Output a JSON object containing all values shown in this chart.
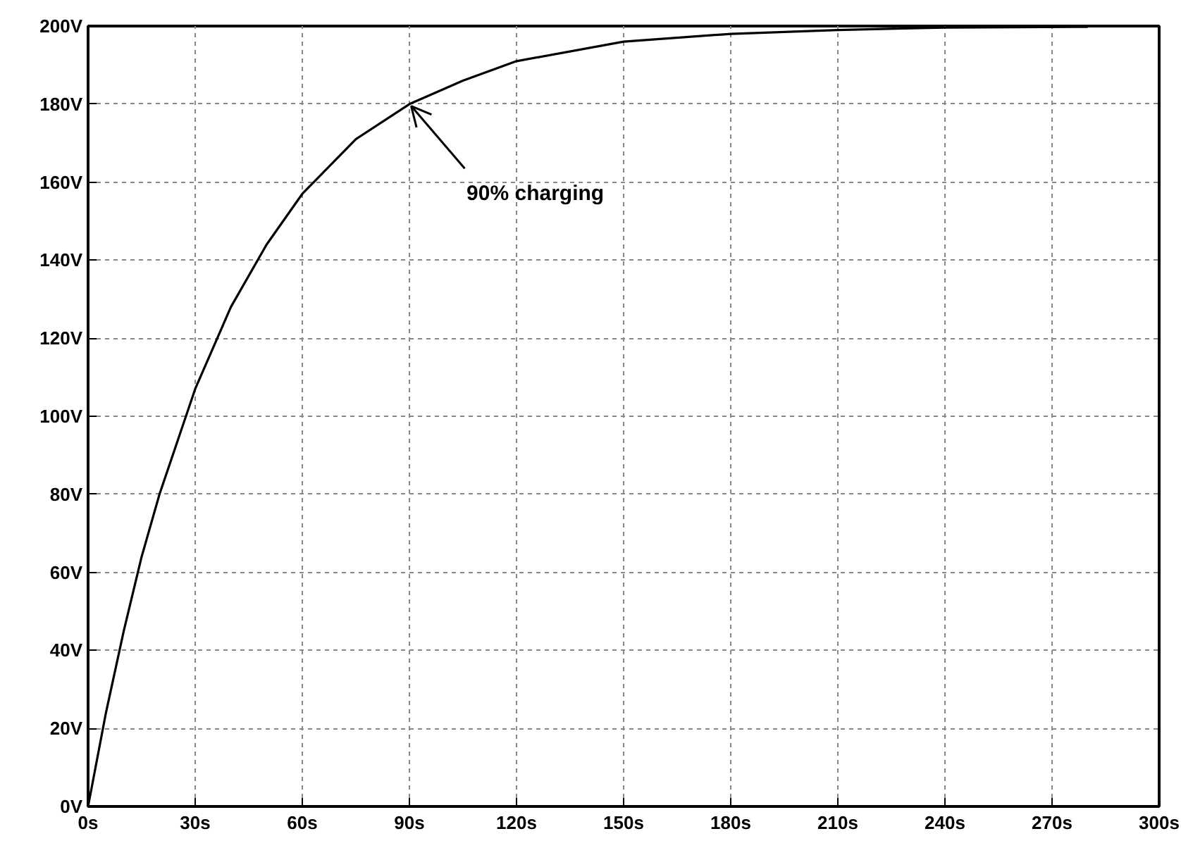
{
  "chart_data": {
    "type": "line",
    "x": [
      0,
      5,
      10,
      15,
      20,
      30,
      40,
      50,
      60,
      75,
      90,
      105,
      120,
      150,
      180,
      210,
      240,
      280
    ],
    "series": [
      {
        "color": "#000000",
        "values": [
          0,
          24,
          45,
          64,
          80,
          107,
          128,
          144,
          157,
          171,
          180,
          186,
          191,
          196,
          198,
          199,
          199.6,
          199.8
        ]
      }
    ],
    "xlim": [
      0,
      300
    ],
    "ylim": [
      0,
      200
    ],
    "xticks": [
      {
        "value": 0,
        "label": "0s"
      },
      {
        "value": 30,
        "label": "30s"
      },
      {
        "value": 60,
        "label": "60s"
      },
      {
        "value": 90,
        "label": "90s"
      },
      {
        "value": 120,
        "label": "120s"
      },
      {
        "value": 150,
        "label": "150s"
      },
      {
        "value": 180,
        "label": "180s"
      },
      {
        "value": 210,
        "label": "210s"
      },
      {
        "value": 240,
        "label": "240s"
      },
      {
        "value": 270,
        "label": "270s"
      },
      {
        "value": 300,
        "label": "300s"
      }
    ],
    "yticks": [
      {
        "value": 0,
        "label": "0V"
      },
      {
        "value": 20,
        "label": "20V"
      },
      {
        "value": 40,
        "label": "40V"
      },
      {
        "value": 60,
        "label": "60V"
      },
      {
        "value": 80,
        "label": "80V"
      },
      {
        "value": 100,
        "label": "100V"
      },
      {
        "value": 120,
        "label": "120V"
      },
      {
        "value": 140,
        "label": "140V"
      },
      {
        "value": 160,
        "label": "160V"
      },
      {
        "value": 180,
        "label": "180V"
      },
      {
        "value": 200,
        "label": "200V"
      }
    ],
    "grid": true,
    "marker": "none",
    "line_style": "solid",
    "annotations": [
      {
        "text": "90% charging",
        "x": 90,
        "y": 180
      }
    ]
  }
}
